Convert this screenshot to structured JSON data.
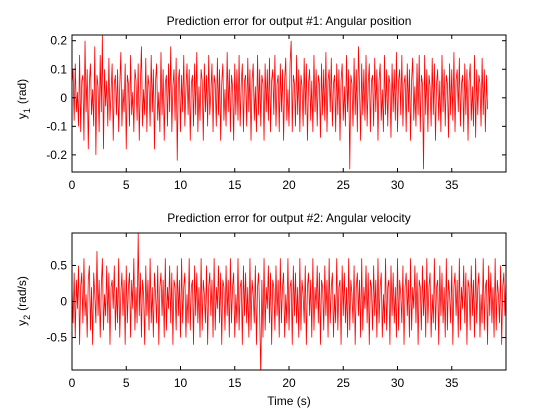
{
  "chart_data": [
    {
      "type": "line",
      "title": "Prediction error for output #1: Angular position",
      "ylabel_main": "y",
      "ylabel_sub": "1",
      "ylabel_unit": "(rad)",
      "xlabel": "",
      "xlim": [
        0,
        40
      ],
      "ylim": [
        -0.26,
        0.22
      ],
      "x_ticks": [
        0,
        5,
        10,
        15,
        20,
        25,
        30,
        35
      ],
      "y_ticks": [
        -0.2,
        -0.1,
        0,
        0.1,
        0.2
      ],
      "y_tick_labels": [
        "-0.2",
        "-0.1",
        "0",
        "0.1",
        "0.2"
      ],
      "grid": false,
      "series": [
        {
          "color": "#ff0000",
          "x_start": 0,
          "x_step": 0.1,
          "values": [
            0.05,
            0.1,
            -0.08,
            0.12,
            -0.05,
            0.02,
            -0.1,
            0.15,
            -0.12,
            0.06,
            0.08,
            -0.15,
            0.2,
            -0.05,
            0.1,
            -0.18,
            0.05,
            0.12,
            -0.06,
            0.03,
            -0.1,
            0.18,
            -0.2,
            0.08,
            0.04,
            -0.12,
            0.15,
            -0.05,
            0.22,
            -0.18,
            0.1,
            -0.03,
            0.06,
            -0.1,
            0.14,
            -0.08,
            0.02,
            0.12,
            -0.15,
            0.05,
            0.08,
            -0.06,
            0.1,
            -0.12,
            0.04,
            0.16,
            -0.1,
            0.03,
            -0.05,
            0.12,
            -0.18,
            0.08,
            0.05,
            -0.1,
            0.15,
            -0.06,
            0.02,
            -0.12,
            0.1,
            0.06,
            -0.08,
            0.12,
            -0.15,
            0.05,
            0.18,
            -0.1,
            0.03,
            -0.06,
            0.14,
            -0.12,
            0.08,
            0.04,
            -0.1,
            0.15,
            -0.05,
            0.1,
            -0.18,
            0.06,
            0.12,
            -0.08,
            0.02,
            -0.12,
            0.16,
            -0.06,
            0.1,
            -0.15,
            0.05,
            0.08,
            -0.1,
            0.12,
            -0.05,
            0.18,
            -0.12,
            0.04,
            0.1,
            -0.08,
            0.14,
            -0.22,
            0.06,
            0.1,
            -0.12,
            0.08,
            -0.05,
            0.15,
            -0.1,
            0.03,
            0.12,
            -0.06,
            0.1,
            -0.15,
            0.05,
            0.08,
            -0.1,
            0.12,
            -0.06,
            0.16,
            -0.12,
            0.04,
            -0.08,
            0.1,
            0.06,
            -0.15,
            0.12,
            -0.05,
            0.08,
            -0.1,
            0.15,
            -0.06,
            0.02,
            0.12,
            -0.12,
            0.08,
            0.05,
            -0.1,
            0.14,
            -0.06,
            0.1,
            -0.15,
            0.05,
            0.12,
            -0.08,
            0.03,
            -0.1,
            0.16,
            -0.05,
            0.1,
            -0.12,
            0.08,
            0.04,
            -0.15,
            0.12,
            -0.06,
            0.1,
            -0.08,
            0.15,
            -0.1,
            0.05,
            0.12,
            -0.12,
            0.06,
            0.08,
            -0.1,
            0.14,
            -0.05,
            0.1,
            -0.15,
            0.06,
            0.12,
            -0.08,
            0.04,
            -0.12,
            0.15,
            -0.06,
            0.1,
            -0.1,
            0.08,
            0.05,
            -0.15,
            0.12,
            -0.05,
            0.1,
            -0.08,
            0.14,
            -0.12,
            0.06,
            0.1,
            -0.06,
            0.15,
            -0.1,
            0.05,
            0.08,
            -0.12,
            0.12,
            -0.05,
            0.1,
            -0.15,
            0.06,
            0.14,
            -0.08,
            0.03,
            -0.1,
            0.12,
            0.2,
            -0.12,
            0.08,
            0.05,
            -0.1,
            0.15,
            -0.06,
            0.1,
            -0.12,
            0.08,
            0.04,
            -0.1,
            0.14,
            -0.06,
            0.12,
            -0.15,
            0.05,
            0.1,
            -0.08,
            0.06,
            -0.12,
            0.15,
            -0.05,
            0.1,
            -0.1,
            0.08,
            0.05,
            -0.14,
            0.12,
            -0.06,
            0.1,
            -0.08,
            0.16,
            -0.12,
            0.06,
            0.1,
            -0.05,
            0.14,
            -0.1,
            0.05,
            0.08,
            -0.12,
            0.12,
            -0.06,
            0.1,
            -0.15,
            0.06,
            0.12,
            -0.08,
            0.04,
            -0.1,
            0.15,
            -0.05,
            0.1,
            -0.25,
            0.08,
            0.05,
            -0.1,
            0.14,
            -0.06,
            0.1,
            -0.12,
            0.18,
            0.04,
            -0.15,
            0.12,
            -0.06,
            0.1,
            -0.08,
            0.15,
            -0.1,
            0.05,
            0.12,
            -0.12,
            0.06,
            0.08,
            -0.1,
            0.14,
            -0.05,
            0.1,
            -0.15,
            0.06,
            0.12,
            -0.08,
            0.03,
            -0.12,
            0.15,
            -0.06,
            0.1,
            -0.1,
            0.08,
            0.05,
            -0.14,
            0.12,
            -0.05,
            0.1,
            -0.08,
            0.16,
            -0.12,
            0.06,
            0.1,
            -0.06,
            0.15,
            -0.1,
            0.05,
            0.08,
            -0.12,
            0.12,
            -0.05,
            0.1,
            -0.15,
            0.06,
            0.14,
            -0.08,
            0.04,
            -0.1,
            0.12,
            -0.06,
            0.15,
            -0.12,
            0.08,
            0.05,
            -0.25,
            0.15,
            -0.06,
            0.1,
            -0.12,
            0.08,
            0.04,
            -0.1,
            0.14,
            -0.06,
            0.12,
            -0.15,
            0.05,
            0.1,
            -0.08,
            0.06,
            -0.12,
            0.15,
            -0.05,
            0.1,
            -0.1,
            0.08,
            0.05,
            -0.14,
            0.12,
            -0.06,
            0.1,
            -0.08,
            0.16,
            -0.12,
            0.06,
            0.1,
            -0.05,
            0.14,
            -0.1,
            0.05,
            0.08,
            -0.12,
            0.12,
            -0.06,
            0.1,
            -0.15,
            0.06,
            0.12,
            -0.08,
            0.04,
            -0.1,
            0.15,
            -0.14,
            0.1,
            -0.06,
            0.08,
            0.05,
            -0.1,
            0.14,
            -0.06,
            0.1,
            -0.12,
            0.08,
            -0.04
          ]
        }
      ]
    },
    {
      "type": "line",
      "title": "Prediction error for output #2: Angular velocity",
      "ylabel_main": "y",
      "ylabel_sub": "2",
      "ylabel_unit": "(rad/s)",
      "xlabel": "Time (s)",
      "xlim": [
        0,
        40
      ],
      "ylim": [
        -0.95,
        0.95
      ],
      "x_ticks": [
        0,
        5,
        10,
        15,
        20,
        25,
        30,
        35
      ],
      "y_ticks": [
        -0.5,
        0,
        0.5
      ],
      "y_tick_labels": [
        "-0.5",
        "0",
        "0.5"
      ],
      "grid": false,
      "series": [
        {
          "color": "#ff0000",
          "x_start": 0,
          "x_step": 0.1,
          "values": [
            0.2,
            -0.3,
            0.4,
            -0.5,
            0.3,
            -0.1,
            0.5,
            -0.6,
            0.2,
            0.4,
            -0.3,
            0.6,
            -0.2,
            0.1,
            -0.5,
            0.3,
            0.5,
            -0.4,
            0.2,
            -0.6,
            0.4,
            0.1,
            -0.3,
            0.7,
            -0.2,
            0.3,
            -0.5,
            0.2,
            0.6,
            -0.4,
            0.1,
            -0.2,
            0.5,
            -0.3,
            0.4,
            -0.6,
            0.2,
            0.3,
            -0.1,
            0.5,
            -0.4,
            0.2,
            -0.3,
            0.6,
            -0.5,
            0.1,
            0.4,
            -0.2,
            0.3,
            -0.6,
            0.5,
            -0.3,
            0.2,
            0.4,
            -0.5,
            0.3,
            -0.1,
            0.6,
            -0.4,
            0.2,
            -0.3,
            0.95,
            -0.2,
            0.4,
            -0.5,
            0.3,
            0.1,
            -0.6,
            0.5,
            -0.2,
            0.3,
            -0.4,
            0.6,
            -0.3,
            0.2,
            -0.5,
            0.4,
            0.1,
            -0.3,
            0.5,
            -0.6,
            0.2,
            0.4,
            -0.2,
            0.3,
            -0.5,
            0.6,
            -0.4,
            0.2,
            -0.1,
            0.5,
            -0.3,
            0.4,
            -0.6,
            0.3,
            0.2,
            -0.4,
            0.5,
            -0.2,
            0.3,
            -0.5,
            0.6,
            -0.3,
            0.2,
            0.4,
            -0.5,
            0.1,
            -0.3,
            0.6,
            -0.4,
            0.2,
            0.3,
            -0.6,
            0.5,
            -0.2,
            0.4,
            -0.3,
            0.2,
            -0.5,
            0.6,
            -0.4,
            0.3,
            0.1,
            -0.3,
            0.5,
            -0.6,
            0.2,
            0.4,
            -0.2,
            0.3,
            -0.5,
            0.6,
            -0.4,
            0.2,
            -0.1,
            0.5,
            -0.3,
            0.4,
            -0.6,
            0.3,
            0.2,
            -0.4,
            0.5,
            -0.2,
            0.3,
            -0.5,
            0.6,
            -0.3,
            0.2,
            0.4,
            -0.5,
            0.1,
            -0.3,
            0.6,
            -0.4,
            0.2,
            0.3,
            -0.6,
            0.5,
            -0.2,
            0.4,
            -0.3,
            0.2,
            -0.5,
            0.6,
            -0.4,
            0.3,
            0.1,
            -0.3,
            0.5,
            -0.6,
            0.2,
            0.4,
            -0.2,
            -1.05,
            0.3,
            -0.5,
            0.6,
            -0.4,
            0.2,
            -0.1,
            0.5,
            -0.3,
            0.4,
            -0.6,
            0.3,
            0.2,
            -0.4,
            0.5,
            -0.2,
            0.3,
            -0.5,
            0.6,
            -0.3,
            0.2,
            0.4,
            -0.5,
            0.1,
            -0.3,
            0.6,
            -0.4,
            0.2,
            0.3,
            -0.6,
            0.5,
            -0.2,
            0.4,
            -0.3,
            0.2,
            -0.5,
            0.6,
            -0.4,
            0.3,
            0.1,
            -0.3,
            0.5,
            -0.6,
            0.2,
            0.4,
            -0.2,
            0.3,
            -0.5,
            0.6,
            -0.4,
            0.2,
            -0.1,
            0.5,
            -0.3,
            0.4,
            -0.6,
            0.3,
            0.2,
            -0.4,
            0.5,
            -0.2,
            0.3,
            -0.5,
            0.6,
            -0.3,
            0.2,
            0.4,
            -0.5,
            0.1,
            -0.3,
            0.6,
            -0.4,
            0.2,
            0.3,
            -0.6,
            0.5,
            -0.2,
            0.4,
            -0.3,
            0.2,
            -0.5,
            0.6,
            -0.4,
            0.3,
            0.1,
            -0.3,
            0.5,
            -0.6,
            0.2,
            0.4,
            -0.2,
            0.3,
            -0.5,
            0.6,
            -0.4,
            0.2,
            -0.1,
            0.5,
            -0.3,
            0.4,
            -0.6,
            0.3,
            0.2,
            -0.4,
            0.5,
            -0.2,
            0.3,
            -0.5,
            0.6,
            -0.3,
            0.2,
            0.4,
            -0.5,
            0.1,
            -0.3,
            0.6,
            -0.4,
            0.2,
            0.3,
            -0.6,
            0.5,
            -0.2,
            0.4,
            -0.3,
            0.2,
            -0.5,
            0.6,
            -0.4,
            0.3,
            0.1,
            -0.3,
            0.5,
            -0.6,
            0.2,
            0.4,
            -0.2,
            0.3,
            -0.5,
            0.6,
            -0.4,
            0.2,
            -0.1,
            0.5,
            -0.3,
            0.4,
            -0.6,
            0.3,
            0.2,
            -0.4,
            0.5,
            -0.2,
            0.3,
            -0.5,
            0.6,
            -0.3,
            0.2,
            0.4,
            -0.5,
            0.1,
            -0.3,
            0.6,
            -0.4,
            0.2,
            0.3,
            -0.6,
            0.5,
            -0.2,
            0.4,
            -0.3,
            0.2,
            -0.5,
            0.6,
            -0.4,
            0.3,
            0.1,
            -0.3,
            0.5,
            -0.6,
            0.2,
            0.4,
            -0.2,
            0.3,
            -0.5,
            0.6,
            -0.4,
            0.2,
            -0.1,
            0.5,
            -0.3,
            0.4,
            -0.6,
            0.3,
            0.2,
            -0.4,
            0.5,
            -0.2,
            0.3,
            -0.5,
            0.6,
            -0.3,
            0.2,
            0.4,
            -0.5,
            0.1,
            -0.3,
            0.6,
            -0.4,
            0.2,
            0.3,
            -0.6,
            0.5,
            -0.2,
            0.4,
            -0.3,
            0.2,
            -0.5,
            0.6,
            -0.4,
            0.3,
            0.1,
            -0.3,
            0.5,
            -0.6,
            0.2,
            0.4,
            -0.2,
            0.3,
            -0.5,
            0.6,
            -0.4,
            0.2,
            -0.1,
            0.5,
            -0.3,
            0.4,
            -0.6,
            0.3,
            0.2,
            -0.4
          ]
        }
      ]
    }
  ]
}
